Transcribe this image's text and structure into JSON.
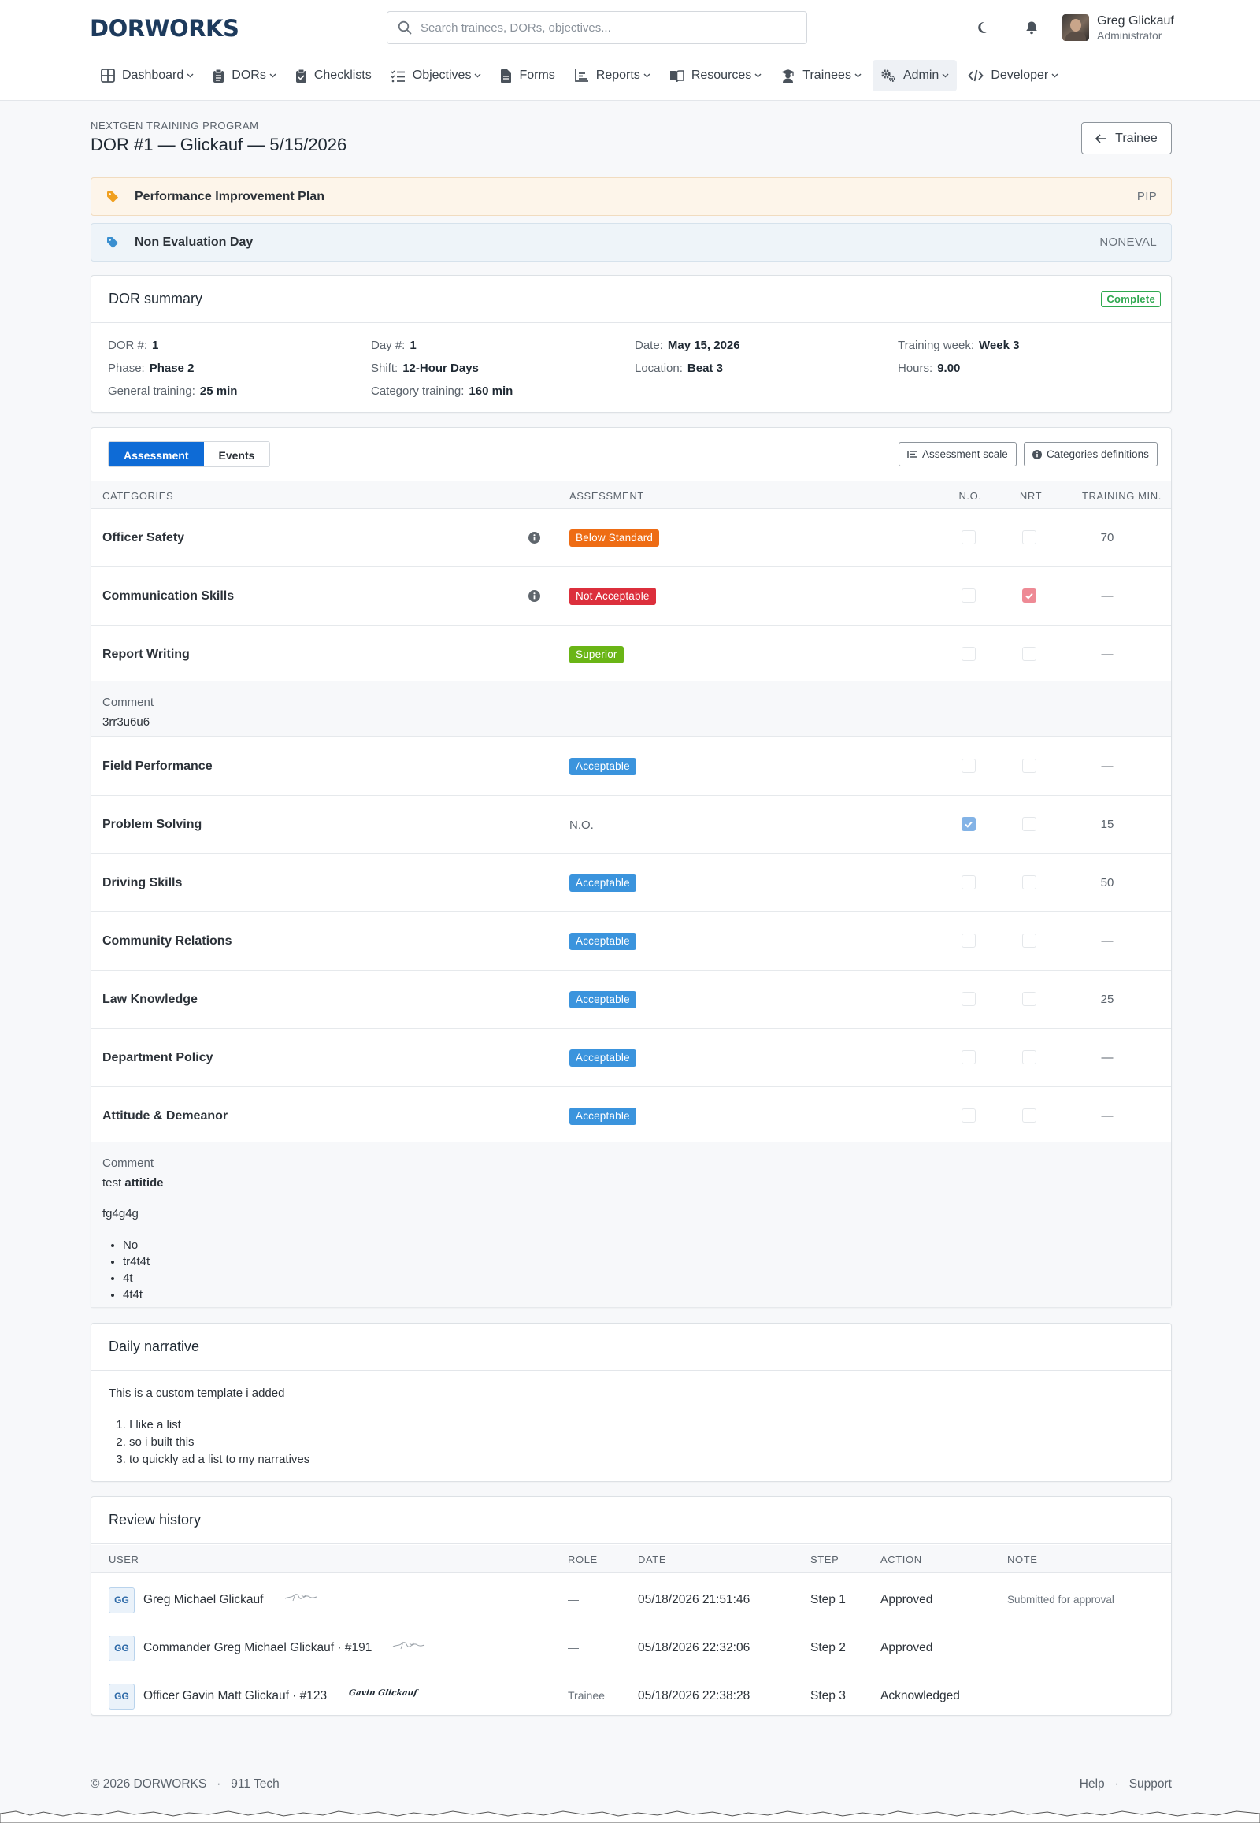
{
  "header": {
    "brand": "DORWORKS",
    "search_placeholder": "Search trainees, DORs, objectives...",
    "user_name": "Greg Glickauf",
    "user_role": "Administrator"
  },
  "nav": [
    {
      "label": "Dashboard",
      "icon": "grid-icon",
      "dropdown": true
    },
    {
      "label": "DORs",
      "icon": "clipboard-icon",
      "dropdown": true
    },
    {
      "label": "Checklists",
      "icon": "clipboard-check-icon",
      "dropdown": false
    },
    {
      "label": "Objectives",
      "icon": "list-check-icon",
      "dropdown": true
    },
    {
      "label": "Forms",
      "icon": "document-icon",
      "dropdown": false
    },
    {
      "label": "Reports",
      "icon": "bar-chart-icon",
      "dropdown": true
    },
    {
      "label": "Resources",
      "icon": "book-icon",
      "dropdown": true
    },
    {
      "label": "Trainees",
      "icon": "graduate-icon",
      "dropdown": true
    },
    {
      "label": "Admin",
      "icon": "gears-icon",
      "dropdown": true,
      "active": true
    },
    {
      "label": "Developer",
      "icon": "code-icon",
      "dropdown": true
    }
  ],
  "page": {
    "kicker": "NEXTGEN TRAINING PROGRAM",
    "title": "DOR #1 — Glickauf — 5/15/2026",
    "back_label": "Trainee"
  },
  "banners": [
    {
      "label": "Performance Improvement Plan",
      "code": "PIP",
      "color": "#f0a020"
    },
    {
      "label": "Non Evaluation Day",
      "code": "NONEVAL",
      "color": "#3a8fd0"
    }
  ],
  "summary": {
    "title": "DOR summary",
    "status": "Complete",
    "fields": {
      "dor_label": "DOR #:",
      "dor": "1",
      "day_label": "Day #:",
      "day": "1",
      "date_label": "Date:",
      "date": "May 15, 2026",
      "week_label": "Training week:",
      "week": "Week 3",
      "phase_label": "Phase:",
      "phase": "Phase 2",
      "shift_label": "Shift:",
      "shift": "12-Hour Days",
      "location_label": "Location:",
      "location": "Beat 3",
      "hours_label": "Hours:",
      "hours": "9.00",
      "general_label": "General training:",
      "general": "25 min",
      "category_label": "Category training:",
      "category": "160 min"
    }
  },
  "assessment": {
    "tabs": [
      "Assessment",
      "Events"
    ],
    "scale_btn": "Assessment scale",
    "defs_btn": "Categories definitions",
    "columns": {
      "categories": "CATEGORIES",
      "assessment": "ASSESSMENT",
      "no": "N.O.",
      "nrt": "NRT",
      "mins": "TRAINING MIN."
    },
    "rows": [
      {
        "category": "Officer Safety",
        "info": true,
        "rating": "Below Standard",
        "color": "#ee6c14",
        "no": false,
        "nrt": false,
        "mins": "70"
      },
      {
        "category": "Communication Skills",
        "info": true,
        "rating": "Not Acceptable",
        "color": "#dc2f3c",
        "no": false,
        "nrt": true,
        "mins": "—"
      },
      {
        "category": "Report Writing",
        "info": false,
        "rating": "Superior",
        "color": "#6ab516",
        "no": false,
        "nrt": false,
        "mins": "—"
      },
      {
        "category": "Field Performance",
        "info": false,
        "rating": "Acceptable",
        "color": "#3b94dd",
        "no": false,
        "nrt": false,
        "mins": "—"
      },
      {
        "category": "Problem Solving",
        "info": false,
        "rating": "N.O.",
        "color": "",
        "no": true,
        "nrt": false,
        "mins": "15"
      },
      {
        "category": "Driving Skills",
        "info": false,
        "rating": "Acceptable",
        "color": "#3b94dd",
        "no": false,
        "nrt": false,
        "mins": "50"
      },
      {
        "category": "Community Relations",
        "info": false,
        "rating": "Acceptable",
        "color": "#3b94dd",
        "no": false,
        "nrt": false,
        "mins": "—"
      },
      {
        "category": "Law Knowledge",
        "info": false,
        "rating": "Acceptable",
        "color": "#3b94dd",
        "no": false,
        "nrt": false,
        "mins": "25"
      },
      {
        "category": "Department Policy",
        "info": false,
        "rating": "Acceptable",
        "color": "#3b94dd",
        "no": false,
        "nrt": false,
        "mins": "—"
      },
      {
        "category": "Attitude & Demeanor",
        "info": false,
        "rating": "Acceptable",
        "color": "#3b94dd",
        "no": false,
        "nrt": false,
        "mins": "—"
      }
    ],
    "comment1": {
      "label": "Comment",
      "text": "3rr3u6u6"
    },
    "comment2": {
      "label": "Comment",
      "line1_plain": "test",
      "line1_bold": "attitide",
      "line2": "fg4g4g",
      "bullets": [
        "No",
        "tr4t4t",
        "4t",
        "4t4t"
      ]
    }
  },
  "narrative": {
    "title": "Daily narrative",
    "text": "This is a custom template i added",
    "items": [
      "I like a list",
      "so i built this",
      "to quickly ad a list to my narratives"
    ]
  },
  "review": {
    "title": "Review history",
    "columns": {
      "user": "USER",
      "role": "ROLE",
      "date": "DATE",
      "step": "STEP",
      "action": "ACTION",
      "note": "NOTE"
    },
    "rows": [
      {
        "initials": "GG",
        "user": "Greg Michael Glickauf",
        "role": "—",
        "date": "05/18/2026 21:51:46",
        "step": "Step 1",
        "action": "Approved",
        "note": "Submitted for approval"
      },
      {
        "initials": "GG",
        "user": "Commander Greg Michael Glickauf · #191",
        "role": "—",
        "date": "05/18/2026 22:32:06",
        "step": "Step 2",
        "action": "Approved",
        "note": ""
      },
      {
        "initials": "GG",
        "user": "Officer Gavin Matt Glickauf · #123",
        "role": "Trainee",
        "date": "05/18/2026 22:38:28",
        "step": "Step 3",
        "action": "Acknowledged",
        "note": "",
        "signature": "Gavin Glickauf"
      }
    ]
  },
  "footer": {
    "copyright": "© 2026 DORWORKS",
    "sep": "·",
    "company": "911 Tech",
    "help": "Help",
    "support": "Support"
  }
}
